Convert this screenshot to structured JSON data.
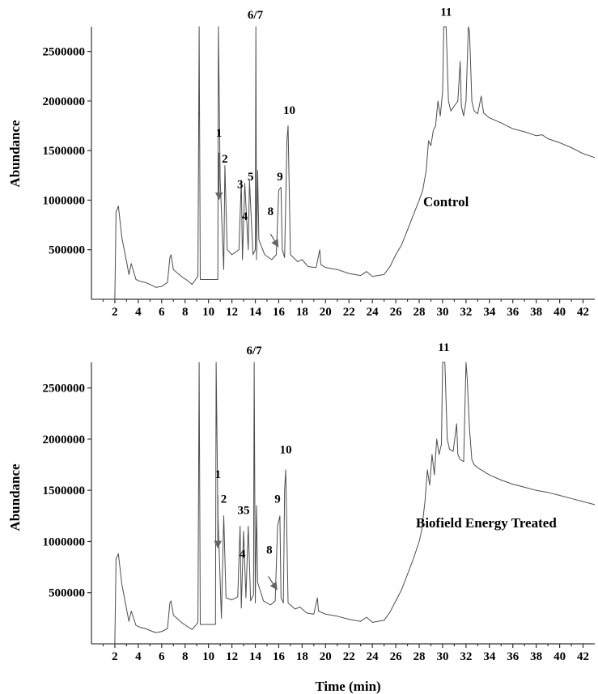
{
  "chart_data": [
    {
      "type": "line",
      "panel": "top",
      "title": "",
      "xlabel": "",
      "ylabel": "Abundance",
      "sample_label": "Control",
      "xlim": [
        0,
        43
      ],
      "ylim": [
        0,
        2750000
      ],
      "x_ticks": [
        2,
        4,
        6,
        8,
        10,
        12,
        14,
        16,
        18,
        20,
        22,
        24,
        26,
        28,
        30,
        32,
        34,
        36,
        38,
        40,
        42
      ],
      "y_ticks": [
        500000,
        1000000,
        1500000,
        2000000,
        2500000
      ],
      "grid": false,
      "legend": "none",
      "series": [
        {
          "x": [
            0,
            2,
            2.1,
            2.3,
            2.6,
            3,
            3.2,
            3.4,
            3.8,
            4.2,
            4.6,
            5,
            5.5,
            6,
            6.5,
            6.7,
            6.8,
            7,
            7.4,
            7.8,
            8.2,
            8.6,
            8.9,
            9.1,
            9.2,
            9.3,
            10.1,
            10.8,
            10.85,
            11,
            11.3,
            11.4,
            11.6,
            12,
            12.6,
            12.8,
            12.9,
            13.1,
            13.4,
            13.5,
            13.8,
            14,
            14.05,
            14.1,
            14.2,
            14.3,
            14.8,
            15.4,
            15.8,
            16.0,
            16.2,
            16.3,
            16.5,
            16.7,
            16.8,
            17.0,
            17.6,
            18.0,
            18.5,
            19.2,
            19.5,
            19.6,
            20,
            21,
            22,
            23,
            23.5,
            24,
            25,
            25.5,
            26,
            26.5,
            27,
            27.5,
            28,
            28.3,
            28.6,
            28.8,
            29,
            29.2,
            29.4,
            29.6,
            29.8,
            30,
            30.1,
            30.3,
            30.5,
            30.7,
            31,
            31.3,
            31.5,
            31.6,
            31.8,
            32,
            32.2,
            32.3,
            32.5,
            32.7,
            33,
            33.3,
            33.5,
            34,
            35,
            36,
            37,
            38,
            38.5,
            39,
            40,
            41,
            42,
            43
          ],
          "y": [
            0,
            0,
            880000,
            940000,
            620000,
            380000,
            250000,
            360000,
            200000,
            180000,
            170000,
            150000,
            120000,
            130000,
            170000,
            420000,
            450000,
            300000,
            260000,
            220000,
            190000,
            150000,
            200000,
            230000,
            2750000,
            200000,
            200000,
            200000,
            2750000,
            1200000,
            300000,
            1350000,
            500000,
            450000,
            500000,
            1200000,
            400000,
            1170000,
            500000,
            1200000,
            450000,
            500000,
            2750000,
            400000,
            1300000,
            600000,
            450000,
            400000,
            450000,
            1100000,
            1130000,
            500000,
            420000,
            1600000,
            1750000,
            450000,
            380000,
            400000,
            330000,
            320000,
            500000,
            350000,
            320000,
            300000,
            260000,
            240000,
            280000,
            230000,
            250000,
            330000,
            450000,
            550000,
            700000,
            850000,
            1000000,
            1100000,
            1300000,
            1600000,
            1550000,
            1700000,
            1750000,
            2000000,
            1850000,
            2100000,
            2750000,
            2750000,
            2000000,
            1900000,
            1950000,
            2000000,
            2400000,
            1950000,
            1850000,
            2000000,
            2750000,
            2700000,
            2000000,
            1900000,
            1870000,
            2050000,
            1880000,
            1830000,
            1780000,
            1720000,
            1690000,
            1650000,
            1660000,
            1620000,
            1580000,
            1530000,
            1470000,
            1430000
          ]
        }
      ],
      "peak_labels": [
        {
          "text": "1",
          "x": 10.9,
          "y": 1640000
        },
        {
          "text": "2",
          "x": 11.4,
          "y": 1380000
        },
        {
          "text": "3",
          "x": 12.7,
          "y": 1120000
        },
        {
          "text": "4",
          "x": 13.1,
          "y": 800000
        },
        {
          "text": "5",
          "x": 13.6,
          "y": 1200000
        },
        {
          "text": "6/7",
          "x": 14.0,
          "y": 2830000
        },
        {
          "text": "8",
          "x": 15.3,
          "y": 850000
        },
        {
          "text": "9",
          "x": 16.1,
          "y": 1200000
        },
        {
          "text": "10",
          "x": 16.9,
          "y": 1870000
        },
        {
          "text": "11",
          "x": 30.3,
          "y": 2860000
        }
      ],
      "arrows": [
        {
          "from": [
            10.9,
            1480000
          ],
          "to": [
            10.9,
            1020000
          ]
        },
        {
          "from": [
            15.3,
            660000
          ],
          "to": [
            15.9,
            540000
          ]
        }
      ]
    },
    {
      "type": "line",
      "panel": "bottom",
      "title": "",
      "xlabel": "Time (min)",
      "ylabel": "Abundance",
      "sample_label": "Biofield Energy Treated",
      "xlim": [
        0,
        43
      ],
      "ylim": [
        0,
        2750000
      ],
      "x_ticks": [
        2,
        4,
        6,
        8,
        10,
        12,
        14,
        16,
        18,
        20,
        22,
        24,
        26,
        28,
        30,
        32,
        34,
        36,
        38,
        40,
        42
      ],
      "y_ticks": [
        500000,
        1000000,
        1500000,
        2000000,
        2500000
      ],
      "grid": false,
      "legend": "none",
      "series": [
        {
          "x": [
            0,
            2,
            2.1,
            2.3,
            2.6,
            3,
            3.2,
            3.4,
            3.8,
            4.2,
            4.6,
            5,
            5.5,
            6,
            6.5,
            6.7,
            6.8,
            7,
            7.4,
            7.8,
            8.2,
            8.6,
            8.9,
            9.1,
            9.2,
            9.3,
            10.1,
            10.6,
            10.65,
            10.8,
            11.1,
            11.3,
            11.5,
            12,
            12.5,
            12.7,
            12.8,
            13.0,
            13.2,
            13.4,
            13.6,
            13.85,
            13.9,
            14.0,
            14.1,
            14.2,
            14.7,
            15.3,
            15.7,
            15.9,
            16.1,
            16.2,
            16.4,
            16.5,
            16.6,
            16.8,
            17.4,
            17.8,
            18.4,
            19.0,
            19.3,
            19.4,
            20,
            21,
            22,
            23,
            23.5,
            24,
            25,
            25.5,
            26,
            26.5,
            27,
            27.5,
            28,
            28.2,
            28.5,
            28.7,
            28.9,
            29.1,
            29.3,
            29.5,
            29.7,
            29.9,
            30.0,
            30.2,
            30.4,
            30.6,
            30.9,
            31.2,
            31.3,
            31.5,
            31.8,
            32.0,
            32.1,
            32.3,
            32.5,
            32.7,
            33.0,
            33.3,
            34,
            35,
            36,
            37,
            38,
            39,
            40,
            41,
            42,
            43
          ],
          "y": [
            0,
            0,
            830000,
            880000,
            580000,
            340000,
            220000,
            320000,
            180000,
            160000,
            150000,
            130000,
            110000,
            120000,
            150000,
            400000,
            420000,
            280000,
            240000,
            200000,
            170000,
            140000,
            180000,
            210000,
            2750000,
            190000,
            190000,
            190000,
            2750000,
            1300000,
            250000,
            1250000,
            450000,
            430000,
            460000,
            1150000,
            350000,
            1100000,
            450000,
            1150000,
            420000,
            480000,
            2750000,
            400000,
            1350000,
            600000,
            420000,
            380000,
            420000,
            1150000,
            1250000,
            450000,
            400000,
            1500000,
            1700000,
            400000,
            340000,
            360000,
            300000,
            290000,
            450000,
            320000,
            290000,
            270000,
            240000,
            220000,
            260000,
            210000,
            230000,
            310000,
            420000,
            530000,
            680000,
            830000,
            1000000,
            1100000,
            1400000,
            1700000,
            1550000,
            1850000,
            1650000,
            2000000,
            1850000,
            1950000,
            2750000,
            2750000,
            2000000,
            1900000,
            1880000,
            2150000,
            1850000,
            1800000,
            1780000,
            2750000,
            2600000,
            2100000,
            1800000,
            1750000,
            1720000,
            1700000,
            1650000,
            1600000,
            1560000,
            1530000,
            1500000,
            1480000,
            1450000,
            1420000,
            1390000,
            1360000
          ]
        }
      ],
      "peak_labels": [
        {
          "text": "1",
          "x": 10.8,
          "y": 1620000
        },
        {
          "text": "2",
          "x": 11.3,
          "y": 1380000
        },
        {
          "text": "35",
          "x": 13.0,
          "y": 1270000
        },
        {
          "text": "4",
          "x": 12.9,
          "y": 840000
        },
        {
          "text": "6/7",
          "x": 13.9,
          "y": 2830000
        },
        {
          "text": "8",
          "x": 15.2,
          "y": 880000
        },
        {
          "text": "9",
          "x": 15.9,
          "y": 1380000
        },
        {
          "text": "10",
          "x": 16.6,
          "y": 1860000
        },
        {
          "text": "11",
          "x": 30.1,
          "y": 2860000
        }
      ],
      "arrows": [
        {
          "from": [
            10.8,
            1450000
          ],
          "to": [
            10.8,
            950000
          ]
        },
        {
          "from": [
            15.1,
            660000
          ],
          "to": [
            15.8,
            540000
          ]
        }
      ]
    }
  ]
}
